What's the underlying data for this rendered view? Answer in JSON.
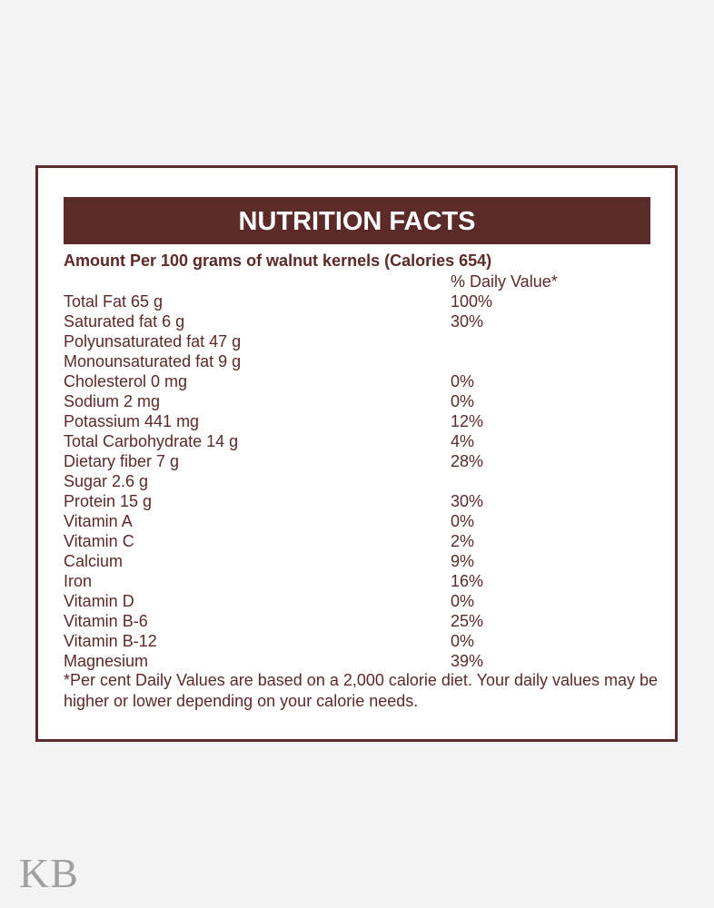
{
  "title": "NUTRITION FACTS",
  "subtitle": "Amount Per 100 grams of walnut kernels (Calories 654)",
  "daily_value_header": "% Daily Value*",
  "rows": [
    {
      "label": "Total Fat 65 g",
      "dv": "100%"
    },
    {
      "label": "Saturated fat 6 g",
      "dv": "30%"
    },
    {
      "label": "Polyunsaturated fat 47 g",
      "dv": ""
    },
    {
      "label": "Monounsaturated fat 9 g",
      "dv": ""
    },
    {
      "label": "Cholesterol 0 mg",
      "dv": "0%"
    },
    {
      "label": "Sodium 2 mg",
      "dv": "0%"
    },
    {
      "label": "Potassium 441 mg",
      "dv": "12%"
    },
    {
      "label": "Total Carbohydrate 14 g",
      "dv": "4%"
    },
    {
      "label": "Dietary fiber 7 g",
      "dv": "28%"
    },
    {
      "label": "Sugar 2.6 g",
      "dv": ""
    },
    {
      "label": "Protein 15 g",
      "dv": "30%"
    },
    {
      "label": "Vitamin A",
      "dv": "0%"
    },
    {
      "label": "Vitamin C",
      "dv": "2%"
    },
    {
      "label": "Calcium",
      "dv": "9%"
    },
    {
      "label": "Iron",
      "dv": "16%"
    },
    {
      "label": "Vitamin D",
      "dv": "0%"
    },
    {
      "label": "Vitamin B-6",
      "dv": "25%"
    },
    {
      "label": "Vitamin B-12",
      "dv": "0%"
    },
    {
      "label": "Magnesium",
      "dv": "39%"
    }
  ],
  "footnote": "*Per cent Daily Values are based on a 2,000 calorie diet. Your daily values may be higher or lower depending on your calorie needs.",
  "logo": "KB",
  "colors": {
    "brand": "#5c2a28",
    "background": "#f4f4f4"
  }
}
